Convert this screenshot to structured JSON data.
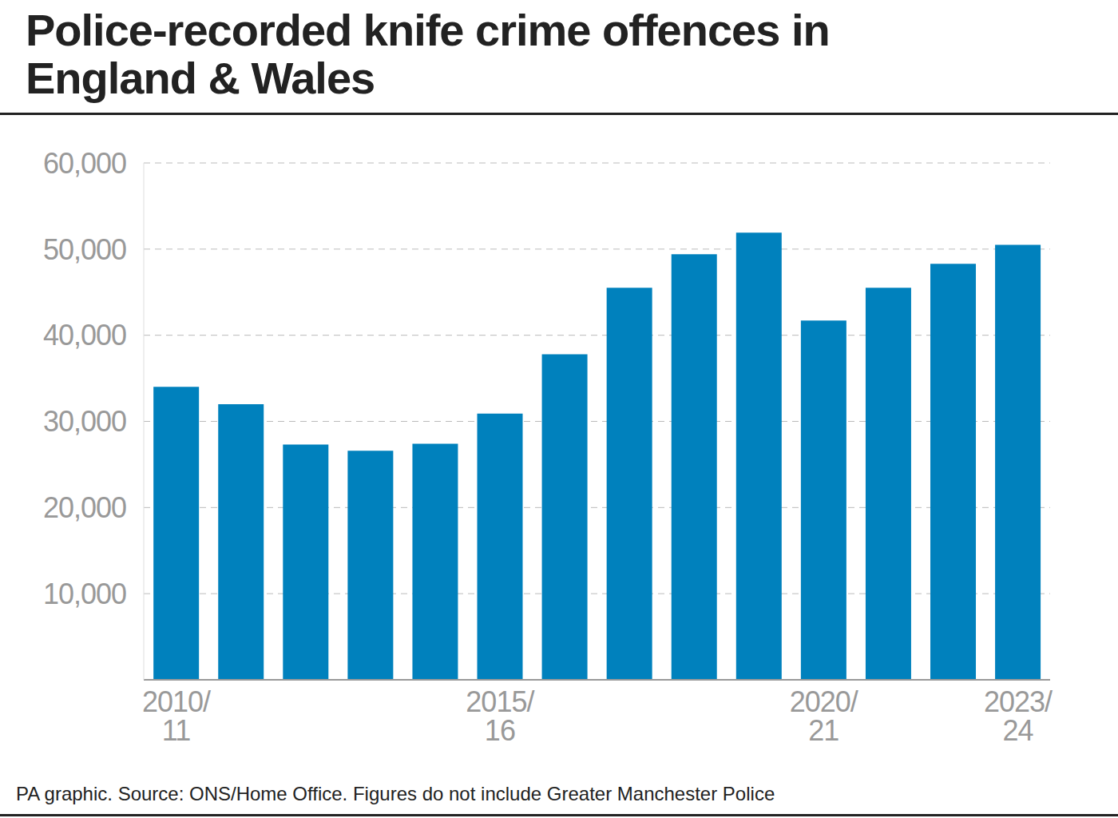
{
  "chart_data": {
    "type": "bar",
    "title": "Police-recorded knife crime offences in England & Wales",
    "source": "PA graphic. Source: ONS/Home Office. Figures do not include Greater Manchester Police",
    "categories": [
      "2010/11",
      null,
      null,
      null,
      null,
      "2015/16",
      null,
      null,
      null,
      null,
      "2020/21",
      null,
      null,
      "2023/24"
    ],
    "values": [
      34000,
      32000,
      27300,
      26600,
      27400,
      30900,
      37800,
      45500,
      49400,
      51900,
      41700,
      45500,
      48300,
      50500
    ],
    "color": "#0081bd",
    "ylim": [
      0,
      60000
    ],
    "yticks": [
      {
        "value": 10000,
        "label": "10,000"
      },
      {
        "value": 20000,
        "label": "20,000"
      },
      {
        "value": 30000,
        "label": "30,000"
      },
      {
        "value": 40000,
        "label": "40,000"
      },
      {
        "value": 50000,
        "label": "50,000"
      },
      {
        "value": 60000,
        "label": "60,000"
      }
    ],
    "grid": true
  }
}
